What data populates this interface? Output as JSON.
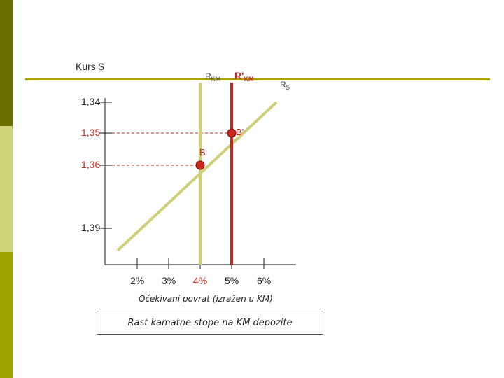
{
  "colors": {
    "sidebar_dark": "#6b6e00",
    "sidebar_light": "#cfd47a",
    "sidebar_mid": "#9ea200",
    "rule": "#a9a400",
    "curve_khaki": "#cfcf7a",
    "accent_red": "#c8281e"
  },
  "y_axis": {
    "title": "Kurs $",
    "ticks": [
      "1,34",
      "1,35",
      "1,36",
      "1,39"
    ]
  },
  "x_axis": {
    "title": "Očekivani povrat (izražen u KM)",
    "ticks": [
      "2%",
      "3%",
      "4%",
      "5%",
      "6%"
    ]
  },
  "curves": {
    "r_km": {
      "main": "R",
      "sub": "KM"
    },
    "r_km_prime": {
      "main": "R'",
      "sub": "KM"
    },
    "r_usd": {
      "main": "R",
      "sub": "$"
    }
  },
  "points": {
    "b": "B",
    "b_prime": "B'"
  },
  "caption": "Rast kamatne stope na KM depozite"
}
